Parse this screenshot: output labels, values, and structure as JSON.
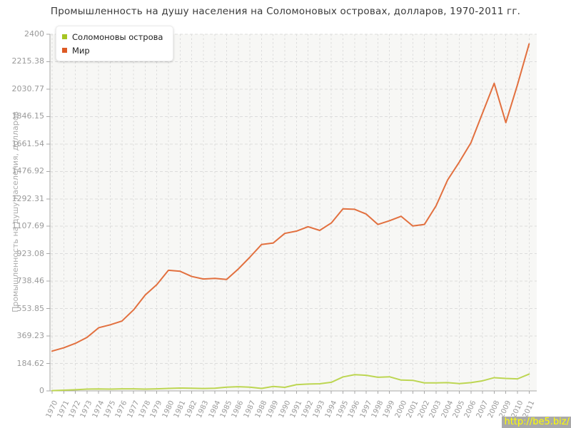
{
  "title": "Промышленность на душу населения на Соломоновых островах, долларов, 1970-2011 гг.",
  "y_axis_label": "Промышленность на душу населения, долларов",
  "watermark": "http://be5.biz/",
  "legend": {
    "items": [
      {
        "label": "Соломоновы острова",
        "color": "#a6c522"
      },
      {
        "label": "Мир",
        "color": "#dd5a24"
      }
    ]
  },
  "colors": {
    "plot_background": "#f7f7f5",
    "grid": "#dcdcdc",
    "axis": "#a8a8a8",
    "tick_text": "#9a9a9a",
    "solomon_line": "#bdd652",
    "world_line": "#e2703f",
    "watermark_bg": "#a9a9a9",
    "watermark_text": "#ffff00"
  },
  "chart_data": {
    "type": "line",
    "title": "Промышленность на душу населения на Соломоновых островах, долларов, 1970-2011 гг.",
    "xlabel": "",
    "ylabel": "Промышленность на душу населения, долларов",
    "ylim": [
      0,
      2400
    ],
    "grid": true,
    "legend_position": "top-left",
    "y_ticks": [
      "0",
      "184.62",
      "369.23",
      "553.85",
      "738.46",
      "923.08",
      "1107.69",
      "1292.31",
      "1476.92",
      "1661.54",
      "1846.15",
      "2030.77",
      "2215.38",
      "2400"
    ],
    "x": [
      "1970",
      "1971",
      "1972",
      "1973",
      "1974",
      "1975",
      "1976",
      "1977",
      "1978",
      "1979",
      "1980",
      "1981",
      "1982",
      "1983",
      "1984",
      "1985",
      "1986",
      "1987",
      "1988",
      "1989",
      "1990",
      "1991",
      "1992",
      "1993",
      "1994",
      "1995",
      "1996",
      "1997",
      "1998",
      "1999",
      "2000",
      "2001",
      "2002",
      "2003",
      "2004",
      "2005",
      "2006",
      "2007",
      "2008",
      "2009",
      "2010",
      "2011"
    ],
    "series": [
      {
        "name": "Соломоновы острова",
        "color": "#bdd652",
        "values": [
          2,
          5,
          8,
          12,
          13,
          12,
          14,
          14,
          12,
          14,
          17,
          19,
          18,
          16,
          18,
          25,
          28,
          25,
          17,
          30,
          24,
          42,
          46,
          48,
          58,
          94,
          109,
          105,
          92,
          95,
          73,
          71,
          54,
          54,
          56,
          49,
          56,
          68,
          89,
          84,
          81,
          113
        ]
      },
      {
        "name": "Мир",
        "color": "#e2703f",
        "values": [
          268,
          290,
          320,
          360,
          425,
          445,
          470,
          545,
          645,
          715,
          812,
          805,
          770,
          753,
          757,
          750,
          820,
          900,
          985,
          995,
          1060,
          1075,
          1105,
          1080,
          1130,
          1225,
          1222,
          1190,
          1120,
          1145,
          1175,
          1110,
          1120,
          1245,
          1420,
          1540,
          1670,
          1870,
          2070,
          1805,
          2060,
          2335
        ]
      }
    ]
  }
}
